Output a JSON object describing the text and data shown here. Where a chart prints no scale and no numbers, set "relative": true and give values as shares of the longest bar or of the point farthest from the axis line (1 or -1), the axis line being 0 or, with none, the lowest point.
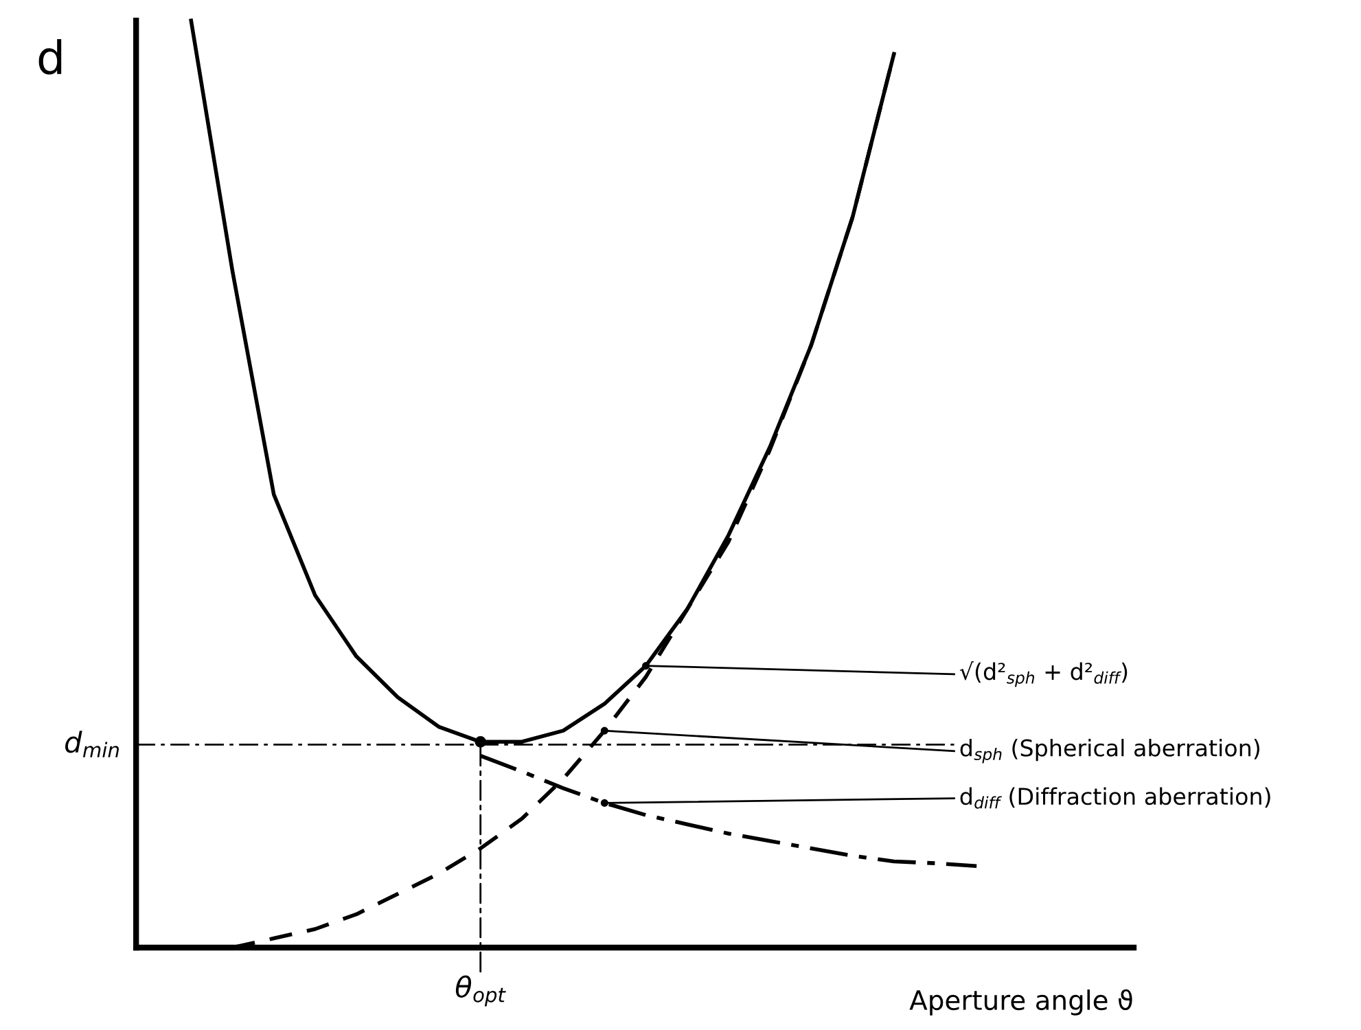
{
  "chart_data": {
    "type": "line",
    "relative": true,
    "ylabel": "d",
    "xlabel": "Aperture angle ϑ",
    "categories": [
      null,
      null,
      null,
      null,
      null,
      null,
      null,
      null,
      null,
      null,
      null,
      null,
      null,
      null,
      null,
      null,
      null,
      null,
      null,
      null,
      null,
      null,
      null,
      null
    ],
    "series": [
      {
        "name": "√(d²$_{sph}$ + d²$_{diff}$)",
        "color": "#000000",
        "line_style": "solid",
        "values": [
          null,
          1.0,
          0.73,
          0.489,
          0.38,
          0.314,
          0.27,
          0.238,
          0.222,
          0.222,
          0.234,
          0.263,
          0.304,
          0.365,
          0.445,
          0.54,
          0.65,
          0.788,
          0.964,
          null,
          null,
          null,
          null,
          null
        ]
      },
      {
        "name": "d$_{sph}$ (Spherical aberration)",
        "color": "#000000",
        "line_style": "dashed",
        "values": [
          null,
          null,
          0.0,
          0.01,
          0.02,
          0.036,
          0.058,
          0.08,
          0.107,
          0.139,
          0.182,
          0.234,
          0.292,
          0.365,
          0.438,
          0.537,
          0.65,
          0.788,
          0.964,
          null,
          null,
          null,
          null,
          null
        ]
      },
      {
        "name": "d$_{diff}$ (Diffraction aberration)",
        "color": "#000000",
        "line_style": "dashdot",
        "values": [
          null,
          null,
          null,
          null,
          null,
          null,
          null,
          null,
          0.207,
          0.19,
          0.172,
          0.156,
          0.143,
          0.133,
          0.123,
          0.115,
          0.107,
          0.099,
          0.093,
          0.091,
          0.088,
          null,
          null,
          null
        ]
      }
    ],
    "ref_lines": [
      {
        "axis": "y",
        "value": 0.219,
        "label": "d$_{min}$",
        "line_style": "dashdot"
      }
    ],
    "annotations": [
      "θ$_{opt}$"
    ]
  }
}
